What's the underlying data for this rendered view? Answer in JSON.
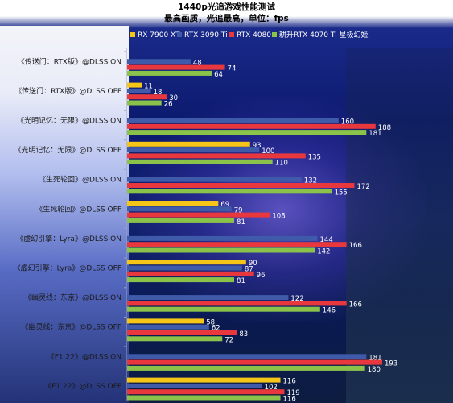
{
  "chart_data": {
    "type": "bar",
    "orientation": "horizontal",
    "title": "1440p光追游戏性能测试",
    "subtitle": "最高画质，光追最高，单位：fps",
    "legend_placement": "top",
    "categories": [
      "《传送门：RTX版》@DLSS ON",
      "《传送门：RTX版》@DLSS OFF",
      "《光明记忆：无限》@DLSS ON",
      "《光明记忆：无限》@DLSS OFF",
      "《生死轮回》@DLSS ON",
      "《生死轮回》@DLSS OFF",
      "《虚幻引擎：Lyra》@DLSS ON",
      "《虚幻引擎：Lyra》@DLSS OFF",
      "《幽灵线：东京》@DLSS ON",
      "《幽灵线：东京》@DLSS OFF",
      "《F1 22》@DLSS ON",
      "《F1 22》@DLSS OFF"
    ],
    "series": [
      {
        "name": "RX 7900 XT",
        "color": "#f5c518",
        "values": [
          null,
          11,
          null,
          93,
          null,
          69,
          null,
          90,
          null,
          58,
          null,
          116
        ]
      },
      {
        "name": "RTX 3090 Ti",
        "color": "#3f5aa8",
        "values": [
          48,
          18,
          160,
          100,
          132,
          79,
          144,
          87,
          122,
          62,
          181,
          102
        ]
      },
      {
        "name": "RTX 4080",
        "color": "#e8383d",
        "values": [
          74,
          30,
          188,
          135,
          172,
          108,
          166,
          96,
          166,
          83,
          193,
          119
        ]
      },
      {
        "name": "耕升RTX 4070 Ti 星极幻姬",
        "color": "#8bc34a",
        "values": [
          64,
          26,
          181,
          110,
          155,
          81,
          142,
          81,
          146,
          72,
          180,
          116
        ]
      }
    ],
    "xlim": [
      0,
      200
    ],
    "grid": false
  }
}
